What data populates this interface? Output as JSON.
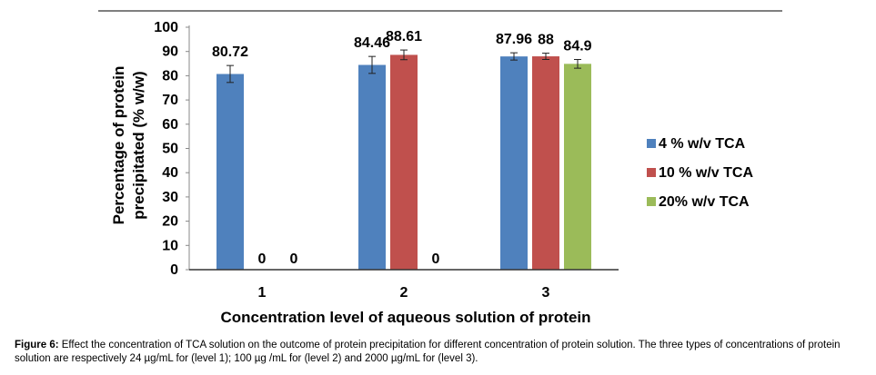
{
  "chart_data": {
    "type": "bar",
    "categories": [
      "1",
      "2",
      "3"
    ],
    "series": [
      {
        "name": "4 % w/v TCA",
        "values": [
          80.72,
          84.46,
          87.96
        ],
        "errors": [
          3.5,
          3.5,
          1.5
        ],
        "color": "#4f81bd"
      },
      {
        "name": "10 % w/v TCA",
        "values": [
          0,
          88.61,
          88
        ],
        "errors": [
          0,
          2.0,
          1.3
        ],
        "color": "#c0504d"
      },
      {
        "name": "20% w/v TCA",
        "values": [
          0,
          0,
          84.9
        ],
        "errors": [
          0,
          0,
          1.8
        ],
        "color": "#9bbb59"
      }
    ],
    "data_labels": [
      [
        "80.72",
        "84.46",
        "87.96"
      ],
      [
        "0",
        "88.61",
        "88"
      ],
      [
        "0",
        "0",
        "84.9"
      ]
    ],
    "ylim": [
      0,
      100
    ],
    "yticks": [
      "0",
      "10",
      "20",
      "30",
      "40",
      "50",
      "60",
      "70",
      "80",
      "90",
      "100"
    ],
    "ylabel_line1": "Percentage of protein",
    "ylabel_line2": "precipitated (% w/w)",
    "xlabel": "Concentration level of aqueous solution of protein",
    "grid": false,
    "legend_position": "right"
  },
  "caption": {
    "label": "Figure 6:",
    "text": " Effect the concentration of TCA solution on the outcome of protein precipitation for different concentration of protein solution. The three types of concentrations of protein solution are respectively 24 µg/mL for (level 1); 100 µg /mL for (level 2) and 2000 µg/mL for (level 3)."
  }
}
